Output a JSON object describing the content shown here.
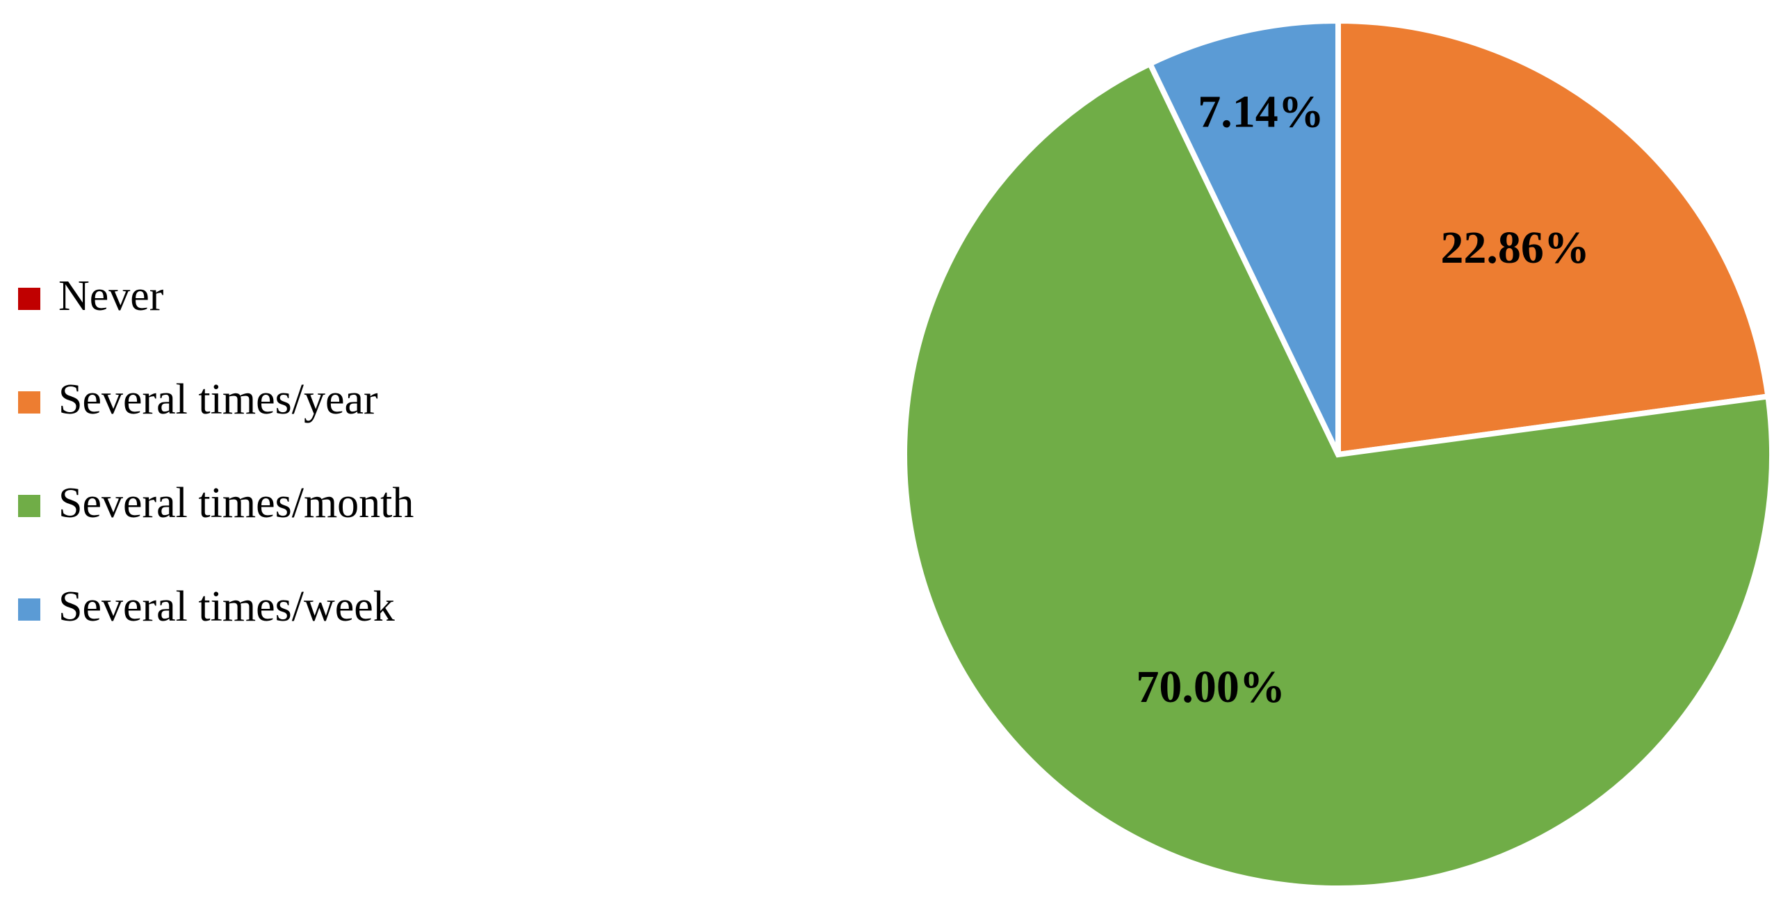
{
  "chart_data": {
    "type": "pie",
    "categories": [
      "Never",
      "Several times/year",
      "Several times/month",
      "Several times/week"
    ],
    "values": [
      0,
      22.86,
      70.0,
      7.14
    ],
    "value_labels": [
      null,
      "22.86%",
      "70.00%",
      "7.14%"
    ],
    "colors": [
      "#c00000",
      "#ed7d31",
      "#70ad47",
      "#5b9bd5"
    ],
    "legend": "left"
  }
}
